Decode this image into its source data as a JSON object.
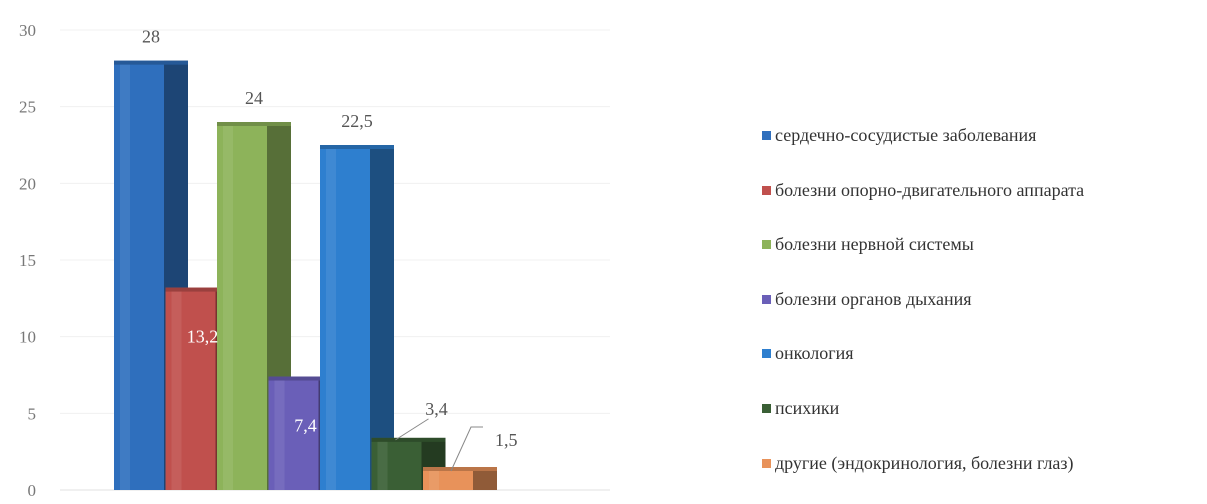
{
  "chart_data": {
    "type": "bar",
    "title": "",
    "xlabel": "",
    "ylabel": "",
    "ylim": [
      0,
      30
    ],
    "y_ticks": [
      "0",
      "5",
      "10",
      "15",
      "20",
      "25",
      "30"
    ],
    "grid": true,
    "legend_position": "right",
    "series": [
      {
        "name": "сердечно-сосудистые заболевания",
        "value": 28,
        "label": "28",
        "color": "#2f6fbd"
      },
      {
        "name": "болезни опорно-двигательного аппарата",
        "value": 13.2,
        "label": "13,2",
        "color": "#c0504d"
      },
      {
        "name": "болезни нервной системы",
        "value": 24,
        "label": "24",
        "color": "#8db35a"
      },
      {
        "name": "болезни органов дыхания",
        "value": 7.4,
        "label": "7,4",
        "color": "#6a5fb8"
      },
      {
        "name": "онкология",
        "value": 22.5,
        "label": "22,5",
        "color": "#2e7fcf"
      },
      {
        "name": "психики",
        "value": 3.4,
        "label": "3,4",
        "color": "#3a5f35"
      },
      {
        "name": "другие (эндокринология, болезни глаз)",
        "value": 1.5,
        "label": "1,5",
        "color": "#e8925a"
      }
    ]
  }
}
